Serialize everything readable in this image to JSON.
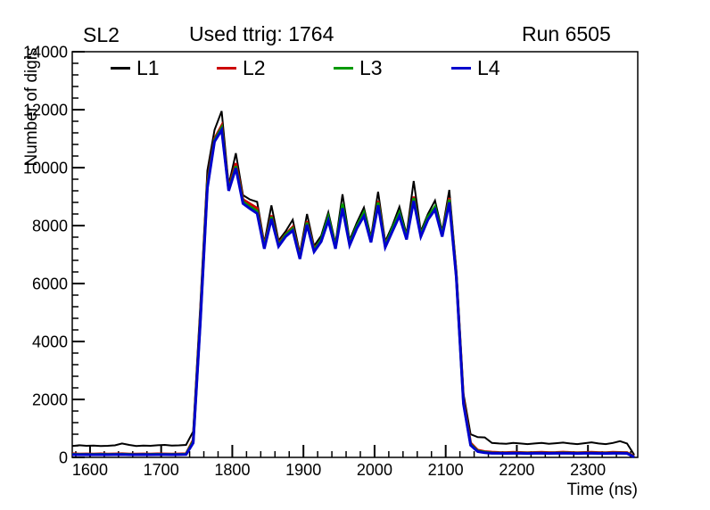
{
  "header": {
    "left": "SL2",
    "center": "Used ttrig: 1764",
    "right": "Run 6505"
  },
  "legend": {
    "entries": [
      {
        "label": "L1",
        "color": "#000000"
      },
      {
        "label": "L2",
        "color": "#cc0000"
      },
      {
        "label": "L3",
        "color": "#009900"
      },
      {
        "label": "L4",
        "color": "#0000cc"
      }
    ]
  },
  "chart_data": {
    "type": "line",
    "title": "SL2  Used ttrig: 1764  Run 6505",
    "xlabel": "Time (ns)",
    "ylabel": "Number of digis",
    "xlim": [
      1575,
      2370
    ],
    "ylim": [
      0,
      14000
    ],
    "x_ticks": [
      1600,
      1700,
      1800,
      1900,
      2000,
      2100,
      2200,
      2300
    ],
    "x_minor_step": 20,
    "y_ticks": [
      0,
      2000,
      4000,
      6000,
      8000,
      10000,
      12000,
      14000
    ],
    "y_minor_step": 400,
    "grid": false,
    "legend_position": "top-inside",
    "frame_color": "#000000",
    "x": [
      1575,
      1585,
      1595,
      1605,
      1615,
      1625,
      1635,
      1645,
      1655,
      1665,
      1675,
      1685,
      1695,
      1705,
      1715,
      1725,
      1735,
      1745,
      1755,
      1765,
      1775,
      1785,
      1795,
      1805,
      1815,
      1825,
      1835,
      1845,
      1855,
      1865,
      1875,
      1885,
      1895,
      1905,
      1915,
      1925,
      1935,
      1945,
      1955,
      1965,
      1975,
      1985,
      1995,
      2005,
      2015,
      2025,
      2035,
      2045,
      2055,
      2065,
      2075,
      2085,
      2095,
      2105,
      2115,
      2125,
      2135,
      2145,
      2155,
      2165,
      2175,
      2185,
      2195,
      2205,
      2215,
      2225,
      2235,
      2245,
      2255,
      2265,
      2275,
      2285,
      2295,
      2305,
      2315,
      2325,
      2335,
      2345,
      2355,
      2365
    ],
    "series": [
      {
        "name": "L1",
        "color": "#000000",
        "width": 2,
        "values": [
          390,
          420,
          400,
          410,
          390,
          400,
          415,
          480,
          430,
          395,
          410,
          400,
          420,
          430,
          405,
          415,
          430,
          900,
          5200,
          9900,
          11300,
          11950,
          9400,
          10500,
          9050,
          8900,
          8820,
          7400,
          8700,
          7480,
          7800,
          8200,
          7050,
          8400,
          7300,
          7650,
          8460,
          7385,
          9080,
          7500,
          8100,
          8620,
          7600,
          9170,
          7450,
          8000,
          8650,
          7700,
          9540,
          7800,
          8400,
          8860,
          7800,
          9230,
          6500,
          2200,
          800,
          700,
          690,
          500,
          480,
          470,
          500,
          480,
          460,
          480,
          500,
          470,
          490,
          510,
          480,
          460,
          490,
          520,
          480,
          460,
          500,
          560,
          480,
          90
        ]
      },
      {
        "name": "L2",
        "color": "#cc0000",
        "width": 3,
        "values": [
          125,
          115,
          120,
          118,
          122,
          117,
          120,
          125,
          118,
          115,
          120,
          118,
          122,
          120,
          117,
          120,
          125,
          600,
          4800,
          9500,
          11000,
          11450,
          9300,
          10150,
          8900,
          8750,
          8600,
          7300,
          8350,
          7380,
          7700,
          7950,
          6950,
          8150,
          7200,
          7500,
          8250,
          7280,
          8700,
          7400,
          7950,
          8400,
          7500,
          8850,
          7350,
          7850,
          8400,
          7600,
          9000,
          7700,
          8250,
          8600,
          7700,
          8950,
          6300,
          2000,
          500,
          250,
          200,
          180,
          170,
          165,
          175,
          170,
          160,
          170,
          175,
          165,
          170,
          180,
          170,
          160,
          170,
          175,
          165,
          160,
          175,
          170,
          165,
          30
        ]
      },
      {
        "name": "L3",
        "color": "#009900",
        "width": 3,
        "values": [
          108,
          104,
          106,
          105,
          107,
          104,
          106,
          110,
          105,
          103,
          106,
          105,
          107,
          106,
          104,
          106,
          110,
          550,
          4700,
          9400,
          10950,
          11380,
          9250,
          10050,
          8820,
          8650,
          8500,
          7250,
          8300,
          7330,
          7680,
          7900,
          6900,
          8100,
          7150,
          7520,
          8300,
          7250,
          8750,
          7380,
          7980,
          8450,
          7480,
          8800,
          7300,
          7900,
          8450,
          7580,
          8950,
          7680,
          8300,
          8650,
          7680,
          8900,
          6250,
          1900,
          450,
          220,
          180,
          155,
          150,
          148,
          152,
          150,
          145,
          150,
          152,
          148,
          150,
          155,
          150,
          145,
          150,
          152,
          148,
          145,
          152,
          150,
          148,
          20
        ]
      },
      {
        "name": "L4",
        "color": "#0000cc",
        "width": 3,
        "values": [
          95,
          92,
          94,
          93,
          95,
          92,
          94,
          97,
          93,
          91,
          94,
          93,
          95,
          94,
          92,
          94,
          97,
          500,
          4600,
          9300,
          10900,
          11300,
          9200,
          9980,
          8760,
          8580,
          8420,
          7200,
          8230,
          7280,
          7620,
          7830,
          6850,
          8030,
          7100,
          7450,
          8180,
          7200,
          8600,
          7320,
          7900,
          8330,
          7420,
          8700,
          7250,
          7800,
          8330,
          7520,
          8850,
          7620,
          8200,
          8550,
          7620,
          8800,
          6200,
          1850,
          420,
          200,
          160,
          142,
          140,
          138,
          141,
          140,
          136,
          140,
          141,
          138,
          140,
          143,
          140,
          136,
          140,
          141,
          138,
          136,
          141,
          140,
          138,
          10
        ]
      }
    ]
  }
}
